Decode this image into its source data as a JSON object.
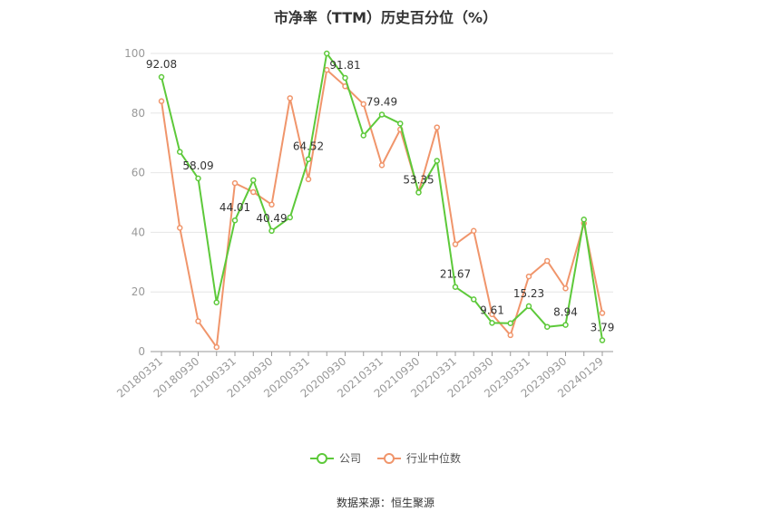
{
  "chart_data": {
    "type": "line",
    "title": "市净率（TTM）历史百分位（%）",
    "ylim": [
      0,
      100
    ],
    "yticks": [
      0,
      20,
      40,
      60,
      80,
      100
    ],
    "xtick_labels": [
      "20180331",
      "20180930",
      "20190331",
      "20190930",
      "20200331",
      "20200930",
      "20210331",
      "20210930",
      "20220331",
      "20220930",
      "20230331",
      "20230930",
      "20240129"
    ],
    "grid": true,
    "legend_position": "bottom",
    "series": [
      {
        "name": "公司",
        "color": "#5dc93a",
        "values": [
          92.08,
          67.0,
          58.09,
          16.5,
          44.01,
          57.5,
          40.49,
          45.0,
          64.52,
          100.0,
          91.81,
          72.5,
          79.49,
          76.5,
          53.35,
          64.0,
          21.67,
          17.5,
          9.61,
          9.5,
          15.23,
          8.3,
          8.94,
          44.3,
          3.79
        ],
        "labels": [
          "92.08",
          "",
          "58.09",
          "",
          "44.01",
          "",
          "40.49",
          "",
          "64.52",
          "",
          "91.81",
          "",
          "79.49",
          "",
          "53.35",
          "",
          "21.67",
          "",
          "9.61",
          "",
          "15.23",
          "",
          "8.94",
          "",
          "3.79"
        ]
      },
      {
        "name": "行业中位数",
        "color": "#f0956b",
        "values": [
          84.0,
          41.5,
          10.2,
          1.5,
          56.5,
          53.5,
          49.3,
          85.0,
          57.8,
          94.5,
          89.0,
          83.0,
          62.5,
          74.5,
          53.5,
          75.2,
          36.0,
          40.5,
          12.5,
          5.5,
          25.2,
          30.4,
          21.2,
          43.0,
          12.9
        ]
      }
    ]
  },
  "legend": {
    "company_label": "公司",
    "industry_label": "行业中位数"
  },
  "source_text": "数据来源：恒生聚源"
}
